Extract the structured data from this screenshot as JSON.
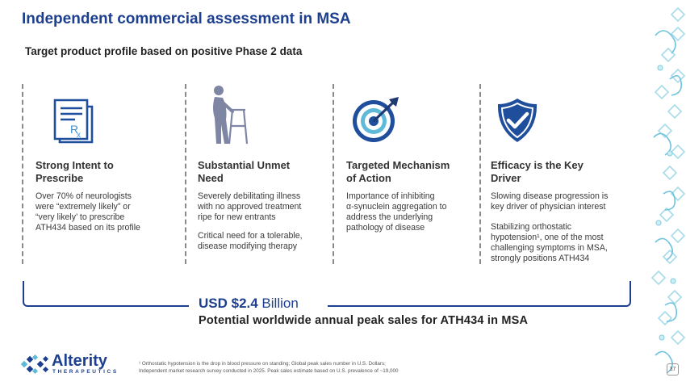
{
  "header": {
    "title": "Independent commercial assessment in MSA",
    "subtitle": "Target product profile based on positive Phase 2 data"
  },
  "columns": [
    {
      "icon": "prescription-icon",
      "heading_lines": [
        "Strong Intent to",
        "Prescribe"
      ],
      "paragraphs": [
        [
          "Over 70% of neurologists",
          "were “extremely likely” or",
          "“very likely’ to prescribe",
          "ATH434 based on its profile"
        ]
      ]
    },
    {
      "icon": "person-walker-icon",
      "heading_lines": [
        "Substantial Unmet",
        "Need"
      ],
      "paragraphs": [
        [
          "Severely debilitating illness",
          "with no approved treatment",
          "ripe for new entrants"
        ],
        [
          "Critical need for a tolerable,",
          "disease modifying therapy"
        ]
      ]
    },
    {
      "icon": "target-arrow-icon",
      "heading_lines": [
        "Targeted Mechanism",
        "of Action"
      ],
      "paragraphs": [
        [
          "Importance of inhibiting",
          "α-synuclein aggregation to",
          "address the underlying",
          "pathology of disease"
        ]
      ]
    },
    {
      "icon": "shield-check-icon",
      "heading_lines": [
        "Efficacy is the Key",
        "Driver"
      ],
      "paragraphs": [
        [
          "Slowing disease progression is",
          "key driver of physician interest"
        ],
        [
          "Stabilizing orthostatic",
          "hypotension¹, one of the most",
          "challenging symptoms in MSA,",
          "strongly positions ATH434"
        ]
      ]
    }
  ],
  "highlight": {
    "amount_strong": "USD $2.4",
    "amount_rest": " Billion",
    "tagline": "Potential worldwide annual peak sales for ATH434 in MSA"
  },
  "logo": {
    "name": "Alterity",
    "sub": "THERAPEUTICS"
  },
  "footnote": [
    "¹ Orthostatic hypotension is the drop in blood pressure on standing; Global peak sales number in U.S. Dollars;",
    "Independent market research survey conducted in 2025. Peak sales estimate based on U.S. prevalence of ~19,000"
  ],
  "page_number": "37",
  "colors": {
    "brand_blue": "#1d3f8f",
    "icon_blue": "#1f4e9c",
    "light_blue": "#5fb9d8",
    "gray_figure": "#7f86a3"
  }
}
